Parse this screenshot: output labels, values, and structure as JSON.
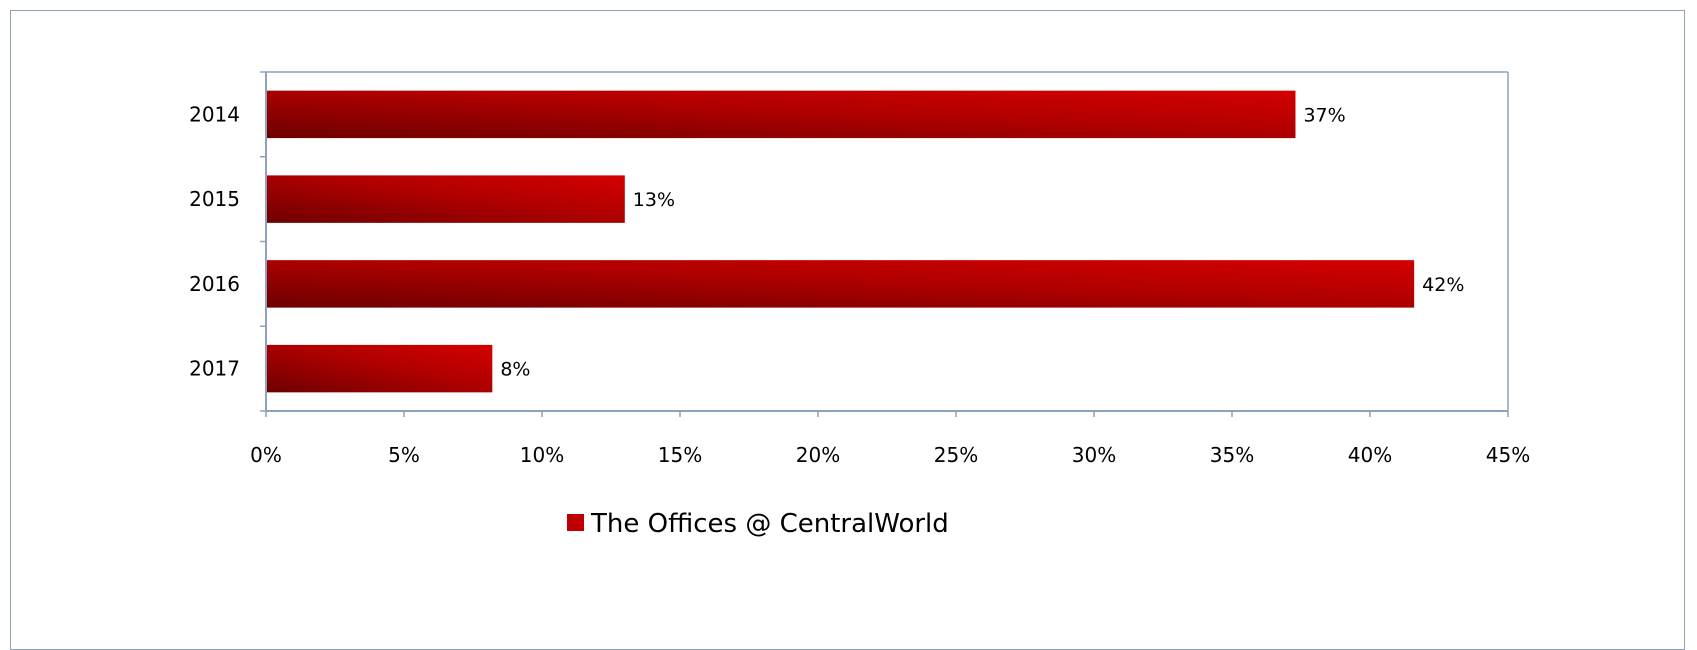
{
  "chart_data": {
    "type": "bar",
    "orientation": "horizontal",
    "categories": [
      "2014",
      "2015",
      "2016",
      "2017"
    ],
    "series": [
      {
        "name": "The Offices @ CentralWorld",
        "values": [
          37.3,
          13.0,
          41.6,
          8.2
        ],
        "labels": [
          "37%",
          "13%",
          "42%",
          "8%"
        ],
        "color": "#c00000"
      }
    ],
    "xlim": [
      0,
      45
    ],
    "xticks": [
      0,
      5,
      10,
      15,
      20,
      25,
      30,
      35,
      40,
      45
    ],
    "xtick_labels": [
      "0%",
      "5%",
      "10%",
      "15%",
      "20%",
      "25%",
      "30%",
      "35%",
      "40%",
      "45%"
    ],
    "grid": false,
    "legend_position": "bottom",
    "colors": {
      "bar_dark": "#6e0000",
      "bar_light": "#d40000",
      "axis": "#8ea2b8",
      "frame": "#8ea2b8"
    }
  }
}
